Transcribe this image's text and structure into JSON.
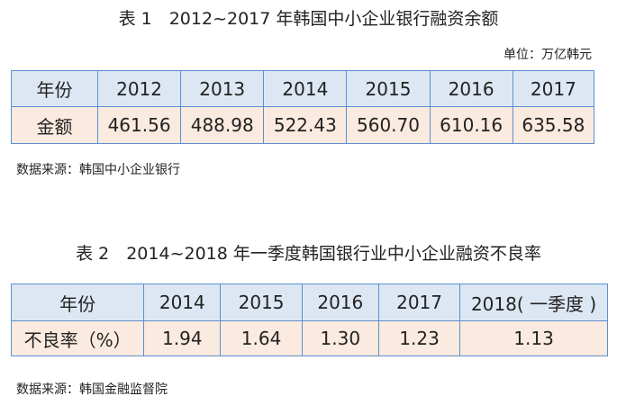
{
  "table1": {
    "title": "表 1　2012~2017 年韩国中小企业银行融资余额",
    "unit": "单位：万亿韩元",
    "header": [
      "年份",
      "2012",
      "2013",
      "2014",
      "2015",
      "2016",
      "2017"
    ],
    "rows": [
      [
        "金额",
        "461.56",
        "488.98",
        "522.43",
        "560.70",
        "610.16",
        "635.58"
      ]
    ],
    "source": "数据来源：韩国中小企业银行"
  },
  "table2": {
    "title": "表 2　2014~2018 年一季度韩国银行业中小企业融资不良率",
    "header": [
      "年份",
      "2014",
      "2015",
      "2016",
      "2017",
      "2018( 一季度 )"
    ],
    "rows": [
      [
        "不良率（%）",
        "1.94",
        "1.64",
        "1.30",
        "1.23",
        "1.13"
      ]
    ],
    "source": "数据来源：韩国金融监督院"
  }
}
